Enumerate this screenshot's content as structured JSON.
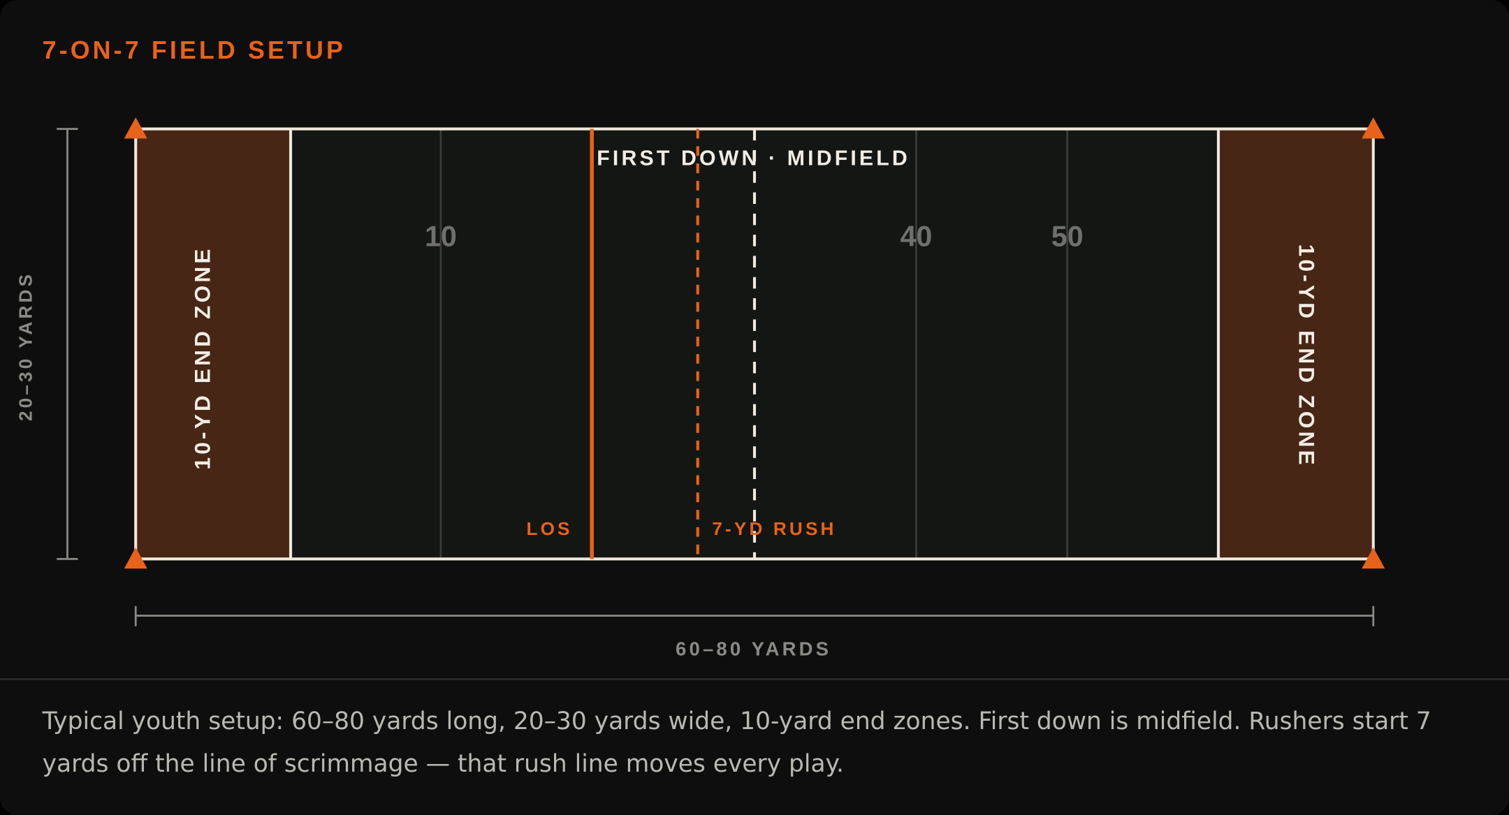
{
  "title": "7-ON-7 FIELD SETUP",
  "field": {
    "end_zone_left": "10-YD END ZONE",
    "end_zone_right": "10-YD END ZONE",
    "yard_numbers": [
      "10",
      "40",
      "50"
    ],
    "first_down": "FIRST DOWN · MIDFIELD",
    "los": "LOS",
    "rush_line": "7-YD RUSH"
  },
  "dimensions": {
    "width": "20–30 YARDS",
    "length": "60–80 YARDS"
  },
  "caption": "Typical youth setup: 60–80 yards long, 20–30 yards wide, 10-yard end zones. First down is midfield. Rushers start 7 yards off the line of scrimmage — that rush line moves every play."
}
